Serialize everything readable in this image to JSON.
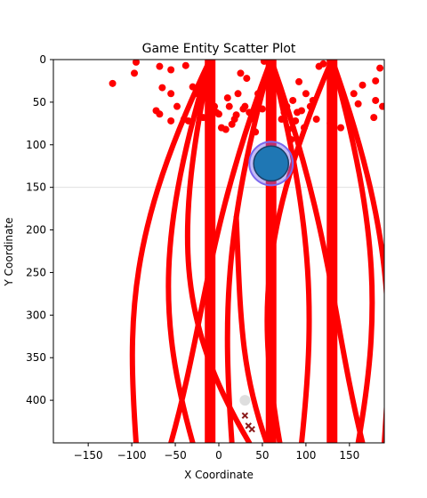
{
  "chart_data": {
    "type": "scatter",
    "title": "Game Entity Scatter Plot",
    "xlabel": "X Coordinate",
    "ylabel": "Y Coordinate",
    "xlim": [
      -190,
      190
    ],
    "ylim": [
      450,
      0
    ],
    "y_inverted": true,
    "grid": false,
    "xticks": [
      -150,
      -100,
      -50,
      0,
      50,
      100,
      150
    ],
    "yticks": [
      0,
      50,
      100,
      150,
      200,
      250,
      300,
      350,
      400
    ],
    "reference_line": {
      "y": 150,
      "color": "#e0e0e0"
    },
    "colors": {
      "enemy": "#ff0000",
      "player": "#1f77b4",
      "player_aura": "#7b68ee",
      "marker": "#d8d8d8",
      "debris": "#8b1a1a"
    },
    "vertical_beams": [
      {
        "x": -10,
        "y_from": 0,
        "y_to": 450
      },
      {
        "x": 60,
        "y_from": 0,
        "y_to": 450
      },
      {
        "x": 130,
        "y_from": 0,
        "y_to": 450
      }
    ],
    "red_points": [
      [
        -122,
        28
      ],
      [
        -95,
        3
      ],
      [
        -97,
        16
      ],
      [
        -68,
        8
      ],
      [
        -55,
        12
      ],
      [
        -65,
        33
      ],
      [
        -55,
        40
      ],
      [
        -72,
        60
      ],
      [
        -68,
        64
      ],
      [
        -55,
        72
      ],
      [
        -48,
        55
      ],
      [
        -40,
        70
      ],
      [
        -35,
        72
      ],
      [
        -38,
        7
      ],
      [
        -30,
        32
      ],
      [
        -25,
        40
      ],
      [
        -20,
        48
      ],
      [
        -18,
        68
      ],
      [
        -12,
        72
      ],
      [
        -8,
        78
      ],
      [
        -5,
        55
      ],
      [
        -3,
        62
      ],
      [
        0,
        64
      ],
      [
        3,
        80
      ],
      [
        8,
        82
      ],
      [
        10,
        45
      ],
      [
        12,
        55
      ],
      [
        15,
        76
      ],
      [
        18,
        70
      ],
      [
        20,
        65
      ],
      [
        22,
        40
      ],
      [
        25,
        16
      ],
      [
        28,
        58
      ],
      [
        30,
        55
      ],
      [
        32,
        22
      ],
      [
        35,
        62
      ],
      [
        40,
        70
      ],
      [
        42,
        85
      ],
      [
        45,
        40
      ],
      [
        47,
        45
      ],
      [
        50,
        58
      ],
      [
        52,
        2
      ],
      [
        55,
        18
      ],
      [
        60,
        12
      ],
      [
        65,
        20
      ],
      [
        70,
        35
      ],
      [
        72,
        70
      ],
      [
        75,
        62
      ],
      [
        78,
        55
      ],
      [
        80,
        82
      ],
      [
        83,
        94
      ],
      [
        85,
        48
      ],
      [
        88,
        72
      ],
      [
        90,
        62
      ],
      [
        92,
        26
      ],
      [
        95,
        60
      ],
      [
        98,
        80
      ],
      [
        100,
        40
      ],
      [
        105,
        55
      ],
      [
        108,
        48
      ],
      [
        112,
        70
      ],
      [
        115,
        8
      ],
      [
        120,
        5
      ],
      [
        128,
        75
      ],
      [
        140,
        80
      ],
      [
        148,
        60
      ],
      [
        155,
        40
      ],
      [
        160,
        52
      ],
      [
        165,
        30
      ],
      [
        178,
        68
      ],
      [
        180,
        25
      ],
      [
        180,
        48
      ],
      [
        185,
        10
      ],
      [
        188,
        55
      ]
    ],
    "arcs": [
      {
        "x_top": -10,
        "x_bottom": -95,
        "bulge": -105,
        "y_top": 0,
        "y_bottom": 450
      },
      {
        "x_top": -10,
        "x_bottom": -30,
        "bulge": -70,
        "y_top": 0,
        "y_bottom": 450
      },
      {
        "x_top": -10,
        "x_bottom": 35,
        "bulge": -50,
        "y_top": 0,
        "y_bottom": 450
      },
      {
        "x_top": 60,
        "x_bottom": -55,
        "bulge": -15,
        "y_top": 0,
        "y_bottom": 450
      },
      {
        "x_top": 60,
        "x_bottom": 15,
        "bulge": 5,
        "y_top": 0,
        "y_bottom": 450
      },
      {
        "x_top": 60,
        "x_bottom": 95,
        "bulge": 110,
        "y_top": 0,
        "y_bottom": 450
      },
      {
        "x_top": 60,
        "x_bottom": 165,
        "bulge": 130,
        "y_top": 0,
        "y_bottom": 450
      },
      {
        "x_top": 130,
        "x_bottom": 70,
        "bulge": 45,
        "y_top": 0,
        "y_bottom": 450
      },
      {
        "x_top": 130,
        "x_bottom": 160,
        "bulge": 185,
        "y_top": 0,
        "y_bottom": 450
      },
      {
        "x_top": 130,
        "x_bottom": 190,
        "bulge": 200,
        "y_top": 0,
        "y_bottom": 450
      },
      {
        "x_top": 20,
        "x_bottom": 55,
        "bulge": 25,
        "y_top": 185,
        "y_bottom": 450
      }
    ],
    "player": {
      "x": 60,
      "y": 122,
      "size_units": 20,
      "aura_size_units": 25
    },
    "marker": {
      "x": 30,
      "y": 400
    },
    "debris_points": [
      [
        30,
        418
      ],
      [
        34,
        430
      ],
      [
        38,
        434
      ]
    ]
  }
}
